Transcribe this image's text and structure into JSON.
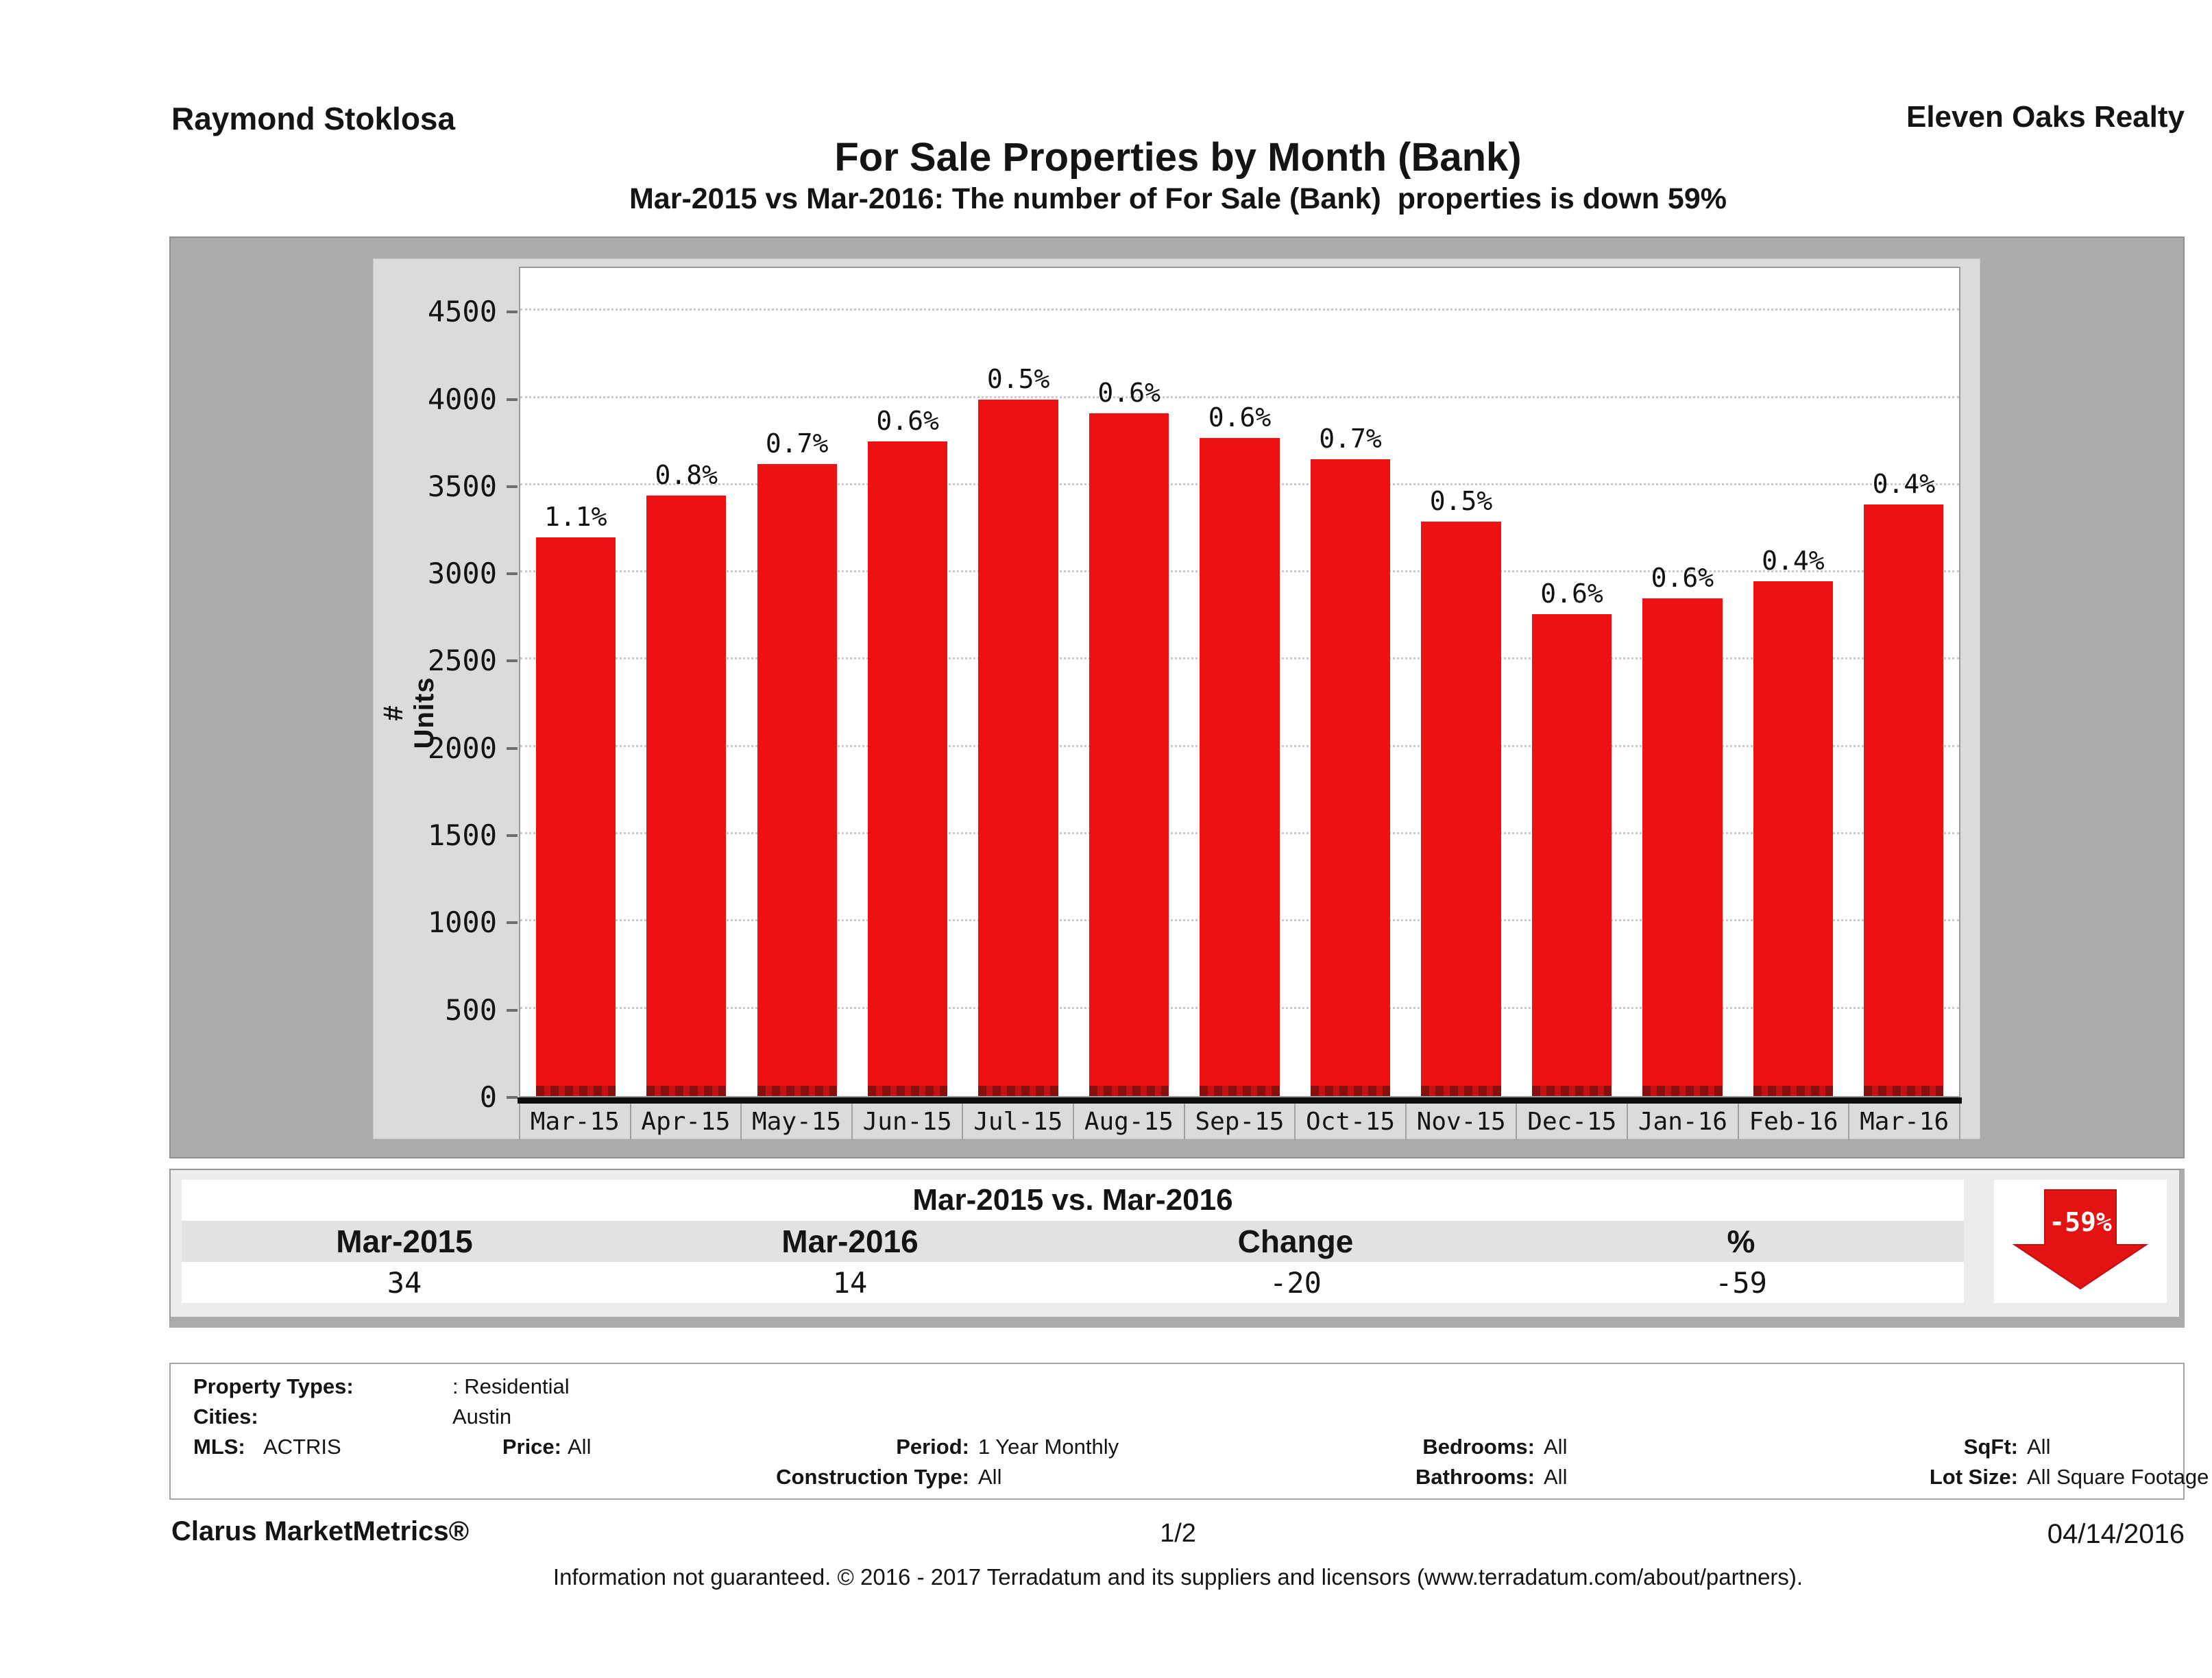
{
  "header": {
    "agent": "Raymond Stoklosa",
    "company": "Eleven Oaks Realty",
    "title": "For Sale Properties by Month (Bank)",
    "subtitle": "Mar-2015 vs Mar-2016: The number of For Sale (Bank)  properties is down 59%"
  },
  "chart_data": {
    "type": "bar",
    "title": "For Sale Properties by Month (Bank)",
    "xlabel": "",
    "ylabel": "# Units",
    "categories": [
      "Mar-15",
      "Apr-15",
      "May-15",
      "Jun-15",
      "Jul-15",
      "Aug-15",
      "Sep-15",
      "Oct-15",
      "Nov-15",
      "Dec-15",
      "Jan-16",
      "Feb-16",
      "Mar-16"
    ],
    "values": [
      3200,
      3440,
      3620,
      3750,
      3990,
      3910,
      3770,
      3650,
      3290,
      2760,
      2850,
      2950,
      3390
    ],
    "bar_labels": [
      "1.1%",
      "0.8%",
      "0.7%",
      "0.6%",
      "0.5%",
      "0.6%",
      "0.6%",
      "0.7%",
      "0.5%",
      "0.6%",
      "0.6%",
      "0.4%",
      "0.4%"
    ],
    "yticks": [
      0,
      500,
      1000,
      1500,
      2000,
      2500,
      3000,
      3500,
      4000,
      4500
    ],
    "ylim": [
      0,
      4760
    ],
    "grid": "horizontal-dotted",
    "legend": "none",
    "bar_color": "#ee1111"
  },
  "summary": {
    "title": "Mar-2015 vs. Mar-2016",
    "columns": [
      "Mar-2015",
      "Mar-2016",
      "Change",
      "%"
    ],
    "values": [
      "34",
      "14",
      "-20",
      "-59"
    ],
    "arrow_label": "-59%"
  },
  "criteria": {
    "property_types_label": "Property Types:",
    "property_types_value": ": Residential",
    "cities_label": "Cities:",
    "cities_value": "Austin",
    "mls_label": "MLS:",
    "mls_value": "ACTRIS",
    "price_label": "Price:",
    "price_value": "All",
    "period_label": "Period:",
    "period_value": "1 Year Monthly",
    "bedrooms_label": "Bedrooms:",
    "bedrooms_value": "All",
    "sqft_label": "SqFt:",
    "sqft_value": "All",
    "construction_label": "Construction Type:",
    "construction_value": "All",
    "bathrooms_label": "Bathrooms:",
    "bathrooms_value": "All",
    "lotsize_label": "Lot Size:",
    "lotsize_value": "All Square Footage"
  },
  "footer": {
    "brand": "Clarus MarketMetrics®",
    "page": "1/2",
    "date": "04/14/2016",
    "disclaimer": "Information not guaranteed. © 2016 - 2017 Terradatum and its suppliers and licensors (www.terradatum.com/about/partners)."
  },
  "colors": {
    "bar_red": "#ee1111",
    "band_dark": "#7e0f0f",
    "band_mid": "#bf1212",
    "arrow_red": "#e41313"
  }
}
